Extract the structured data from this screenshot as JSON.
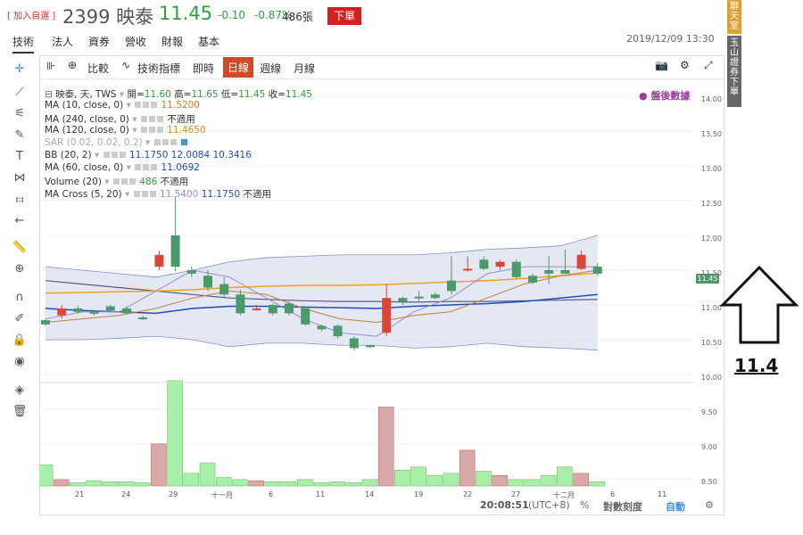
{
  "header": {
    "add_favorite": "[ 加入自選 ]",
    "symbol": "2399 映泰",
    "price": "11.45",
    "change": "-0.10",
    "change_pct": "-0.87%",
    "volume": "486張",
    "order_button": "下單"
  },
  "tabs": [
    "技術",
    "法人",
    "資券",
    "營收",
    "財報",
    "基本"
  ],
  "active_tab": "技術",
  "datetime": "2019/12/09 13:30",
  "toolbar": {
    "compare": "比較",
    "indicators": "技術指標",
    "realtime": "即時",
    "daily": "日線",
    "weekly": "週線",
    "monthly": "月線"
  },
  "legend": {
    "ohlc": {
      "name": "映泰, 天, TWS",
      "open_label": "開",
      "open": "11.60",
      "high_label": "高",
      "high": "11.65",
      "low_label": "低",
      "low": "11.45",
      "close_label": "收",
      "close": "11.45"
    },
    "ma10": {
      "name": "MA (10, close, 0)",
      "value": "11.5200"
    },
    "ma240": {
      "name": "MA (240, close, 0)",
      "value": "不適用"
    },
    "ma120": {
      "name": "MA (120, close, 0)",
      "value": "11.4650"
    },
    "sar": {
      "name": "SAR (0.02, 0.02, 0.2)"
    },
    "bb": {
      "name": "BB (20, 2)",
      "v1": "11.1750",
      "v2": "12.0084",
      "v3": "10.3416"
    },
    "ma60": {
      "name": "MA (60, close, 0)",
      "value": "11.0692"
    },
    "volume": {
      "name": "Volume (20)",
      "value": "486",
      "v2": "不適用"
    },
    "macross": {
      "name": "MA Cross (5, 20)",
      "v1": "11.5400",
      "v2": "11.1750",
      "v3": "不適用"
    }
  },
  "watermark": "盤後數據",
  "price_tag": "11.45",
  "y_ticks": [
    "14.00",
    "13.50",
    "13.00",
    "12.50",
    "12.00",
    "11.50",
    "11.00",
    "10.50",
    "10.00",
    "9.50",
    "9.00",
    "8.50"
  ],
  "x_ticks": [
    "21",
    "24",
    "29",
    "十一月",
    "6",
    "11",
    "14",
    "19",
    "22",
    "27",
    "十二月",
    "6",
    "11"
  ],
  "status": {
    "time": "20:08:51",
    "tz": "(UTC+8)",
    "pct": "%",
    "log": "對數刻度",
    "auto": "自動"
  },
  "right_buttons": {
    "chat": "聊天室",
    "broker": "玉山證券下單"
  },
  "annotation": "11.4",
  "colors": {
    "up": "#d9463a",
    "down": "#4a9a6a",
    "bb_fill": "#dde2f0",
    "ma_orange": "#f0a020",
    "ma_blue": "#1f4fb8"
  }
}
